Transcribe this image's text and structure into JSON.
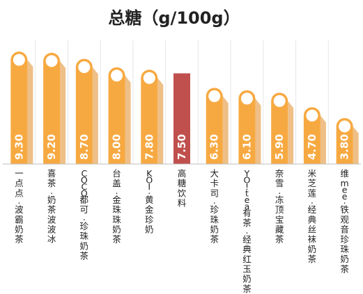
{
  "chart_data": {
    "type": "bar",
    "title": "总糖（g/100g）",
    "xlabel": "",
    "ylabel": "",
    "ylim": [
      0,
      10
    ],
    "grid": "vertical separators",
    "categories": [
      "一点点·波霸奶茶",
      "喜茶·奶茶波波冰",
      "COCO都可·珍珠奶茶",
      "台盖·金珠珠奶茶",
      "KOI·黄金珍奶",
      "高糖饮料",
      "大卡司·珍珠奶茶",
      "YO!tea有茶·经典红玉奶茶",
      "奈雪·冻顶宝藏茶",
      "米芝莲·经典丝袜奶茶",
      "维mee·铁观音珍珠奶茶"
    ],
    "values": [
      9.3,
      9.2,
      8.7,
      8.0,
      7.8,
      7.5,
      6.3,
      6.1,
      5.9,
      4.7,
      3.8
    ],
    "value_labels": [
      "9.30",
      "9.20",
      "8.70",
      "8.00",
      "7.80",
      "7.50",
      "6.30",
      "6.10",
      "5.90",
      "4.70",
      "3.80"
    ],
    "highlight_index": 5,
    "colors": {
      "bar": "#f7a941",
      "highlight": "#c0504d",
      "bar_shadow": "#e08a22"
    }
  }
}
